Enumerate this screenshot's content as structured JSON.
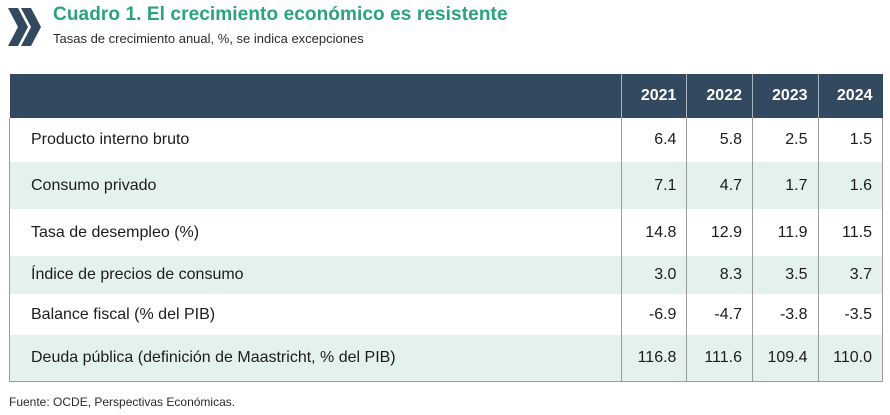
{
  "header": {
    "title": "Cuadro 1. El crecimiento económico es resistente",
    "subtitle": "Tasas de crecimiento anual, %, se indica excepciones",
    "logo_icon": "chevron-double-logo",
    "title_color": "#2aa37a"
  },
  "table": {
    "header_color": "#33495f",
    "alt_row_color": "#e3f2ea",
    "columns": [
      "",
      "2021",
      "2022",
      "2023",
      "2024"
    ],
    "rows": [
      {
        "label": "Producto interno bruto",
        "values": [
          "6.4",
          "5.8",
          "2.5",
          "1.5"
        ]
      },
      {
        "label": "Consumo privado",
        "values": [
          "7.1",
          "4.7",
          "1.7",
          "1.6"
        ]
      },
      {
        "label": "Tasa de desempleo (%)",
        "values": [
          "14.8",
          "12.9",
          "11.9",
          "11.5"
        ]
      },
      {
        "label": "Índice de precios de consumo",
        "values": [
          "3.0",
          "8.3",
          "3.5",
          "3.7"
        ]
      },
      {
        "label": "Balance fiscal (% del PIB)",
        "values": [
          "-6.9",
          "-4.7",
          "-3.8",
          "-3.5"
        ]
      },
      {
        "label": "Deuda pública (definición de Maastricht, % del PIB)",
        "values": [
          "116.8",
          "111.6",
          "109.4",
          "110.0"
        ]
      }
    ]
  },
  "footer": {
    "source": "Fuente: OCDE, Perspectivas Económicas."
  }
}
